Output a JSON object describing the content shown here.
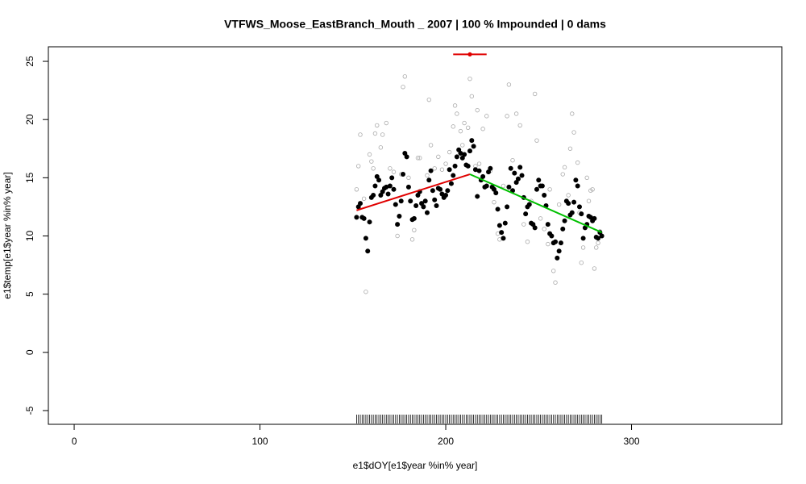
{
  "chart_data": {
    "type": "scatter",
    "title": "VTFWS_Moose_EastBranch_Mouth _ 2007   |   100  % Impounded |  0  dams",
    "x_label": "e1$dOY[e1$year %in% year]",
    "y_label": "e1$temp[e1$year %in% year]",
    "xlim": [
      -13.9,
      380.9
    ],
    "ylim": [
      -6.18,
      26.25
    ],
    "xticks": [
      0,
      100,
      200,
      300
    ],
    "yticks": [
      -5,
      0,
      5,
      10,
      15,
      20,
      25
    ],
    "series": [
      {
        "color": "#aaaaaa",
        "marker": "open",
        "x": [
          152,
          153,
          154,
          156,
          157,
          159,
          160,
          161,
          162,
          163,
          165,
          166,
          168,
          170,
          172,
          174,
          176,
          177,
          178,
          180,
          182,
          183,
          185,
          186,
          188,
          190,
          191,
          192,
          194,
          196,
          198,
          200,
          202,
          204,
          205,
          206,
          208,
          209,
          210,
          212,
          213,
          214,
          216,
          217,
          218,
          220,
          222,
          224,
          226,
          228,
          229,
          231,
          233,
          234,
          236,
          238,
          240,
          242,
          244,
          246,
          248,
          249,
          251,
          253,
          255,
          256,
          258,
          259,
          261,
          263,
          264,
          266,
          267,
          268,
          269,
          271,
          272,
          273,
          274,
          276,
          277,
          278,
          279,
          280,
          281,
          282,
          283
        ],
        "values": [
          14.0,
          16.0,
          18.7,
          13.2,
          5.2,
          17.0,
          16.4,
          15.8,
          18.8,
          19.5,
          17.6,
          18.7,
          19.7,
          15.8,
          15.5,
          10.0,
          15.3,
          22.8,
          23.7,
          15.0,
          9.7,
          10.5,
          16.7,
          16.7,
          12.6,
          15.2,
          21.7,
          17.8,
          15.8,
          16.8,
          15.7,
          16.2,
          17.2,
          19.4,
          21.2,
          20.5,
          19.0,
          17.8,
          19.7,
          19.3,
          23.5,
          22.0,
          16.0,
          20.8,
          16.2,
          19.2,
          20.3,
          15.6,
          12.9,
          10.2,
          9.7,
          14.3,
          20.3,
          23.0,
          16.5,
          20.5,
          19.5,
          11.0,
          9.5,
          13.0,
          22.2,
          18.2,
          11.5,
          10.6,
          9.3,
          14.0,
          7.0,
          6.0,
          12.7,
          15.3,
          15.9,
          13.5,
          17.5,
          20.5,
          18.9,
          16.3,
          12.0,
          7.7,
          9.0,
          15.0,
          13.0,
          13.9,
          14.0,
          7.2,
          9.0,
          9.4,
          10.4
        ]
      },
      {
        "color": "#000000",
        "marker": "filled",
        "rug": true,
        "x": [
          152,
          153,
          154,
          155,
          156,
          157,
          158,
          159,
          160,
          161,
          162,
          163,
          164,
          165,
          166,
          167,
          168,
          169,
          170,
          171,
          172,
          173,
          174,
          175,
          176,
          177,
          178,
          179,
          180,
          181,
          182,
          183,
          184,
          185,
          186,
          187,
          188,
          189,
          190,
          191,
          192,
          193,
          194,
          195,
          196,
          197,
          198,
          199,
          200,
          201,
          202,
          203,
          204,
          205,
          206,
          207,
          208,
          209,
          210,
          211,
          212,
          213,
          214,
          215,
          216,
          217,
          218,
          219,
          220,
          221,
          222,
          223,
          224,
          225,
          226,
          227,
          228,
          229,
          230,
          231,
          232,
          233,
          234,
          235,
          236,
          237,
          238,
          239,
          240,
          241,
          242,
          243,
          244,
          245,
          246,
          247,
          248,
          249,
          250,
          251,
          252,
          253,
          254,
          255,
          256,
          257,
          258,
          259,
          260,
          261,
          262,
          263,
          264,
          265,
          266,
          267,
          268,
          269,
          270,
          271,
          272,
          273,
          274,
          275,
          276,
          277,
          278,
          279,
          280,
          281,
          282,
          283,
          284
        ],
        "values": [
          11.6,
          12.5,
          12.8,
          11.6,
          11.5,
          9.8,
          8.7,
          11.2,
          13.3,
          13.5,
          14.3,
          15.1,
          14.8,
          13.5,
          13.8,
          14.1,
          14.2,
          13.6,
          14.3,
          15.0,
          14.0,
          12.7,
          11.0,
          11.7,
          13.0,
          15.3,
          17.1,
          16.8,
          14.2,
          13.0,
          11.4,
          11.5,
          12.6,
          13.5,
          13.8,
          12.8,
          12.5,
          13.0,
          12.0,
          14.8,
          15.6,
          13.9,
          13.1,
          12.6,
          14.1,
          14.0,
          13.6,
          13.3,
          13.5,
          13.9,
          15.7,
          14.5,
          15.2,
          16.0,
          16.8,
          17.4,
          17.1,
          16.7,
          17.0,
          16.1,
          16.0,
          17.3,
          18.2,
          17.7,
          15.7,
          13.4,
          15.6,
          14.8,
          15.1,
          14.2,
          14.3,
          15.5,
          15.8,
          14.2,
          14.0,
          13.7,
          12.3,
          10.9,
          10.3,
          9.8,
          11.1,
          12.5,
          14.2,
          15.8,
          13.9,
          15.4,
          14.6,
          14.9,
          15.9,
          15.2,
          13.3,
          11.9,
          12.5,
          12.7,
          11.1,
          11.0,
          10.7,
          14.0,
          14.8,
          14.3,
          14.3,
          13.5,
          12.6,
          11.0,
          10.2,
          10.0,
          9.4,
          9.5,
          8.1,
          8.7,
          9.4,
          10.6,
          11.3,
          13.0,
          12.8,
          11.8,
          12.0,
          12.9,
          14.8,
          14.3,
          12.5,
          11.9,
          9.8,
          10.7,
          11.0,
          11.7,
          11.6,
          11.3,
          11.5,
          9.9,
          9.8,
          10.3,
          10.0
        ]
      }
    ],
    "segments": [
      {
        "color": "#e00000",
        "x": [
          152,
          213
        ],
        "values": [
          12.2,
          15.3
        ]
      },
      {
        "color": "#00c000",
        "x": [
          213,
          284
        ],
        "values": [
          15.3,
          10.3
        ]
      }
    ],
    "breakpoint": {
      "color": "#e00000",
      "x": 213,
      "y": 25.6,
      "x_range": [
        204,
        222
      ]
    }
  }
}
